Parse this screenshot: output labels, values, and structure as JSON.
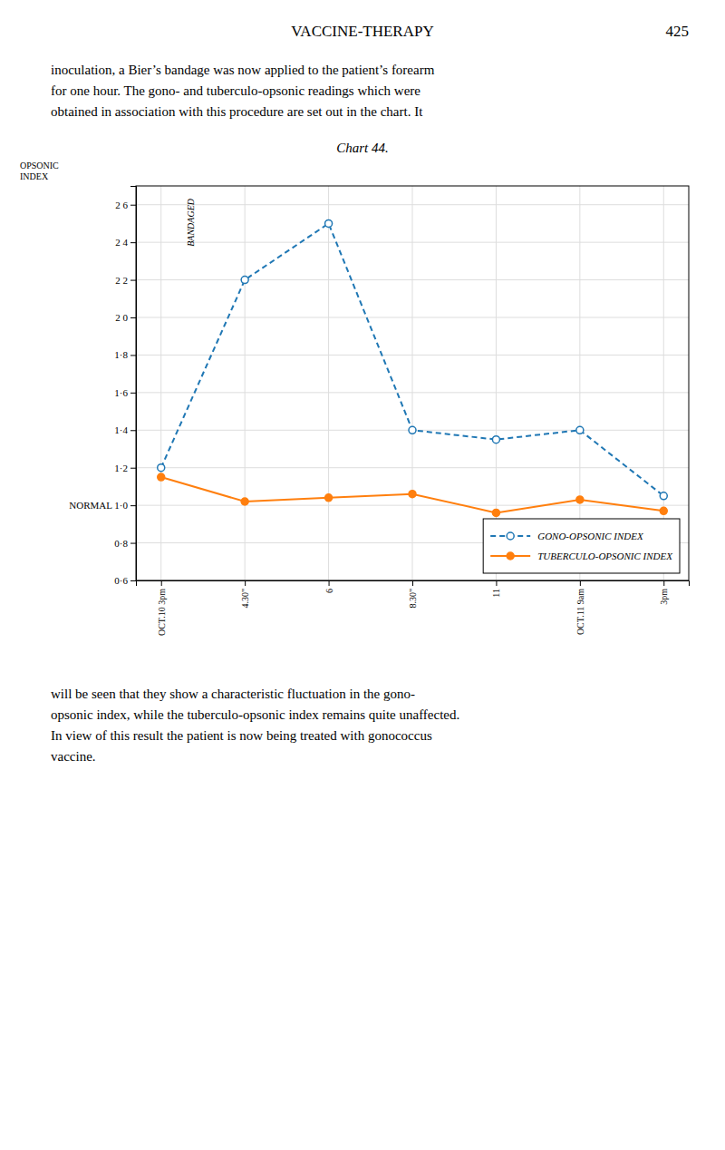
{
  "header_text": "VACCINE-THERAPY",
  "page_number": "425",
  "body_top": "inoculation, a Bier’s bandage was now applied to the patient’s forearm\nfor one hour.  The gono- and tuberculo-opsonic readings which were\nobtained in association with this procedure are set out in the chart.  It",
  "body_bottom": "will be seen that they show a characteristic fluctuation in the gono-\nopsonic index, while the tuberculo-opsonic index remains quite unaffected.\nIn view of this result the patient is now being treated with gonococcus\nvaccine.",
  "chart_data": {
    "type": "line",
    "title": "Chart 44.",
    "y_label": "OPSONIC\nINDEX",
    "annotations": [
      {
        "text": "BANDAGED"
      }
    ],
    "categories": [
      "OCT.10 3pm",
      "4.30\"",
      "6",
      "8.30\"",
      "11",
      "OCT.11 9am",
      "3pm"
    ],
    "series": [
      {
        "name": "GONO-OPSONIC INDEX",
        "values": [
          1.2,
          2.2,
          2.5,
          1.4,
          1.35,
          1.4,
          1.05
        ],
        "line_style": "dashed",
        "marker": "circle-open"
      },
      {
        "name": "TUBERCULO-OPSONIC INDEX",
        "values": [
          1.15,
          1.02,
          1.04,
          1.06,
          0.96,
          1.03,
          0.97
        ],
        "line_style": "solid",
        "marker": "circle"
      }
    ],
    "ylim": [
      0.6,
      2.7
    ],
    "yticks": [
      {
        "value": 0.6,
        "label": "0·6"
      },
      {
        "value": 0.8,
        "label": "0·8"
      },
      {
        "value": 1.0,
        "label": "NORMAL 1·0"
      },
      {
        "value": 1.2,
        "label": "1·2"
      },
      {
        "value": 1.4,
        "label": "1·4"
      },
      {
        "value": 1.6,
        "label": "1·6"
      },
      {
        "value": 1.8,
        "label": "1·8"
      },
      {
        "value": 2.0,
        "label": "2 0"
      },
      {
        "value": 2.2,
        "label": "2 2"
      },
      {
        "value": 2.4,
        "label": "2 4"
      },
      {
        "value": 2.6,
        "label": "2 6"
      }
    ],
    "grid": true,
    "legend": "lower right"
  }
}
